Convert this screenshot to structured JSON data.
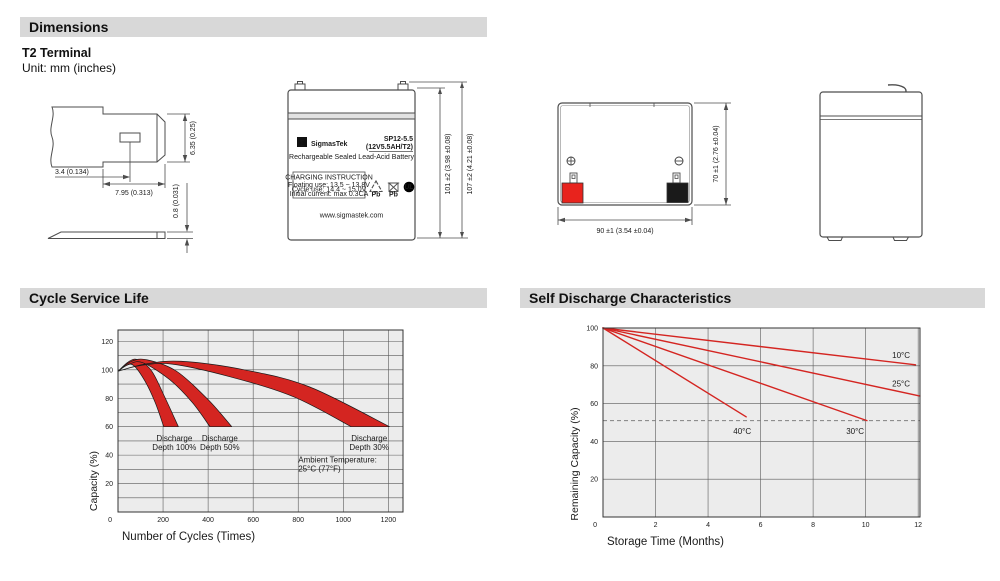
{
  "sections": {
    "dimensions": {
      "title": "Dimensions",
      "subtitle": "T2 Terminal",
      "unit": "Unit: mm (inches)"
    }
  },
  "drawings": {
    "terminal_detail": {
      "dim_offset": "3.4 (0.134)",
      "dim_width": "7.95 (0.313)",
      "dim_height": "6.35 (0.25)",
      "dim_thickness": "0.8 (0.031)"
    },
    "front_view": {
      "logo_sigma": "Σ",
      "brand": "SigmasTek",
      "model": "SP12-5.5",
      "spec": "(12V5.5AH/T2)",
      "type_line": "Rechargeable Sealed Lead-Acid Battery",
      "charging_title": "CHARGING INSTRUCTION",
      "charging_lines": [
        "Floating use: 13.5 ~ 13.8V",
        "Cycle use: 14.4 ~ 15.0V",
        "Initial current: max 0.3CA"
      ],
      "pb_label": "Pb",
      "ul_label": "UL",
      "website": "www.sigmastek.com",
      "dim_case_height": "101 ±2 (3.98 ±0.08)",
      "dim_total_height": "107 ±2 (4.21 ±0.08)"
    },
    "top_view": {
      "dim_width": "90 ±1 (3.54 ±0.04)",
      "dim_depth": "70 ±1 (2.76 ±0.04)",
      "positive_color": "#e8231d",
      "negative_color": "#1a1a1a"
    }
  },
  "chart_data": [
    {
      "type": "area",
      "title": "Cycle Service Life",
      "xlabel": "Number of Cycles (Times)",
      "ylabel": "Capacity (%)",
      "xlim": [
        0,
        1265
      ],
      "ylim": [
        0,
        128
      ],
      "x_grid_step": 200,
      "y_grid_step": 10,
      "x_ticks": [
        200,
        400,
        600,
        800,
        1000,
        1200
      ],
      "y_ticks": [
        20,
        40,
        60,
        80,
        100,
        120
      ],
      "origin_label": "0",
      "plot_bg": "#ececec",
      "grid_color": "#5a5a5a",
      "border_color": "#333333",
      "band_color": "#d42521",
      "band_outline": "#1a1a1a",
      "bands": [
        {
          "depth": "100%",
          "upper": [
            [
              0,
              99
            ],
            [
              50,
              106
            ],
            [
              90,
              107
            ],
            [
              150,
              99
            ],
            [
              210,
              80
            ],
            [
              268,
              60
            ]
          ],
          "lower": [
            [
              0,
              99
            ],
            [
              35,
              103
            ],
            [
              70,
              103
            ],
            [
              120,
              92
            ],
            [
              165,
              77
            ],
            [
              203,
              60
            ]
          ]
        },
        {
          "depth": "50%",
          "upper": [
            [
              0,
              99
            ],
            [
              60,
              106
            ],
            [
              130,
              107
            ],
            [
              260,
              99
            ],
            [
              400,
              79
            ],
            [
              505,
              60
            ]
          ],
          "lower": [
            [
              0,
              99
            ],
            [
              50,
              104
            ],
            [
              110,
              105
            ],
            [
              230,
              93
            ],
            [
              330,
              77
            ],
            [
              408,
              60
            ]
          ]
        },
        {
          "depth": "30%",
          "upper": [
            [
              0,
              99
            ],
            [
              120,
              104
            ],
            [
              280,
              106
            ],
            [
              560,
              100
            ],
            [
              850,
              88
            ],
            [
              1205,
              60
            ]
          ],
          "lower": [
            [
              0,
              99
            ],
            [
              100,
              103
            ],
            [
              240,
              104
            ],
            [
              500,
              95
            ],
            [
              780,
              81
            ],
            [
              1035,
              60
            ]
          ]
        }
      ],
      "annotations": [
        {
          "lines": [
            "Discharge",
            "Depth 100%"
          ],
          "x": 250,
          "y": 52,
          "align": "middle"
        },
        {
          "lines": [
            "Discharge",
            "Depth 50%"
          ],
          "x": 452,
          "y": 52,
          "align": "middle"
        },
        {
          "lines": [
            "Discharge",
            "Depth 30%"
          ],
          "x": 1115,
          "y": 52,
          "align": "middle"
        },
        {
          "lines": [
            "Ambient Temperature:",
            "25°C (77°F)"
          ],
          "x": 800,
          "y": 37,
          "align": "left"
        }
      ]
    },
    {
      "type": "line",
      "title": "Self Discharge Characteristics",
      "xlabel": "Storage Time (Months)",
      "ylabel": "Remaining Capacity (%)",
      "xlim": [
        0,
        12.07
      ],
      "ylim": [
        0,
        100
      ],
      "x_grid_step": 2,
      "y_grid_step": 20,
      "x_ticks": [
        2,
        4,
        6,
        8,
        10,
        12
      ],
      "y_ticks": [
        20,
        40,
        60,
        80,
        100
      ],
      "origin_label": "0",
      "plot_bg": "#ececec",
      "grid_color": "#5a5a5a",
      "border_color": "#333333",
      "line_color": "#d42521",
      "series": [
        {
          "label": "40°C",
          "points": [
            [
              0,
              100
            ],
            [
              5.45,
              53
            ]
          ],
          "label_pos": [
            5.3,
            44
          ]
        },
        {
          "label": "30°C",
          "points": [
            [
              0,
              100
            ],
            [
              10.05,
              51
            ]
          ],
          "label_pos": [
            9.6,
            44
          ]
        },
        {
          "label": "25°C",
          "points": [
            [
              0,
              100
            ],
            [
              12.07,
              64
            ]
          ],
          "label_pos": [
            11.35,
            69
          ]
        },
        {
          "label": "10°C",
          "points": [
            [
              0,
              100
            ],
            [
              11.9,
              80.5
            ]
          ],
          "label_pos": [
            11.35,
            84
          ]
        }
      ],
      "dashed_line": {
        "y": 51,
        "color": "#808080"
      }
    }
  ]
}
